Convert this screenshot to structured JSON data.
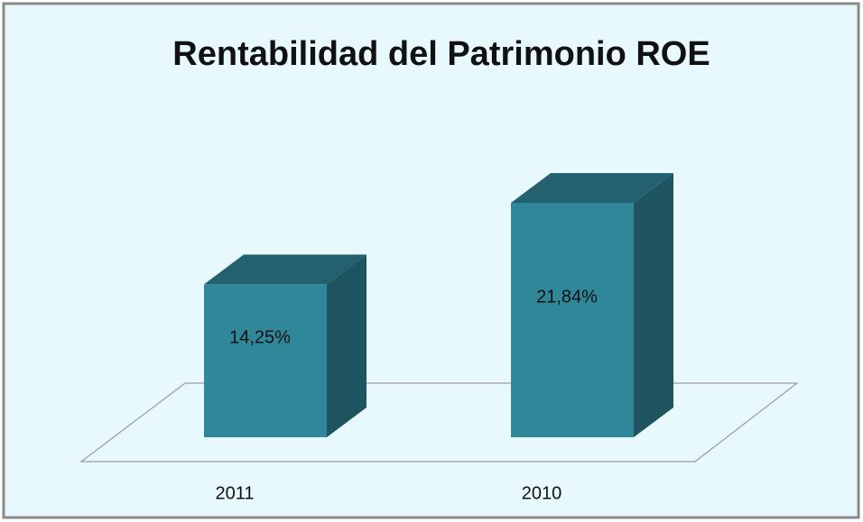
{
  "chart_data": {
    "type": "bar3d",
    "title": "Rentabilidad del Patrimonio ROE",
    "categories": [
      "2011",
      "2010"
    ],
    "values": [
      14.25,
      21.84
    ],
    "value_labels": [
      "14,25%",
      "21,84%"
    ],
    "color": "#31879a"
  }
}
